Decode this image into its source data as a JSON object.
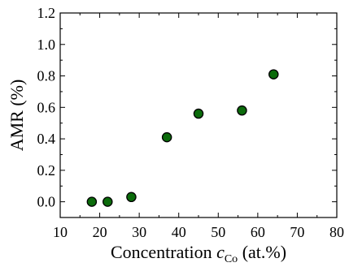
{
  "chart_data": {
    "type": "scatter",
    "title": "",
    "xlabel": {
      "prefix": "Concentration ",
      "symbol": "c",
      "subscript": "Co",
      "suffix": " (at.%)"
    },
    "ylabel": "AMR (%)",
    "xlim": [
      10,
      80
    ],
    "ylim": [
      -0.1,
      1.2
    ],
    "xticks": [
      "10",
      "20",
      "30",
      "40",
      "50",
      "60",
      "70",
      "80"
    ],
    "yticks": [
      "0.0",
      "0.2",
      "0.4",
      "0.6",
      "0.8",
      "1.0",
      "1.2"
    ],
    "grid": false,
    "legend": "none",
    "series": [
      {
        "x": [
          18,
          22,
          28,
          37,
          45,
          56,
          64
        ],
        "y": [
          0.0,
          0.0,
          0.03,
          0.41,
          0.56,
          0.58,
          0.81
        ]
      }
    ],
    "colors": {
      "marker_fill": "#0b6b0b",
      "marker_stroke": "#000000",
      "axis": "#000000"
    }
  }
}
